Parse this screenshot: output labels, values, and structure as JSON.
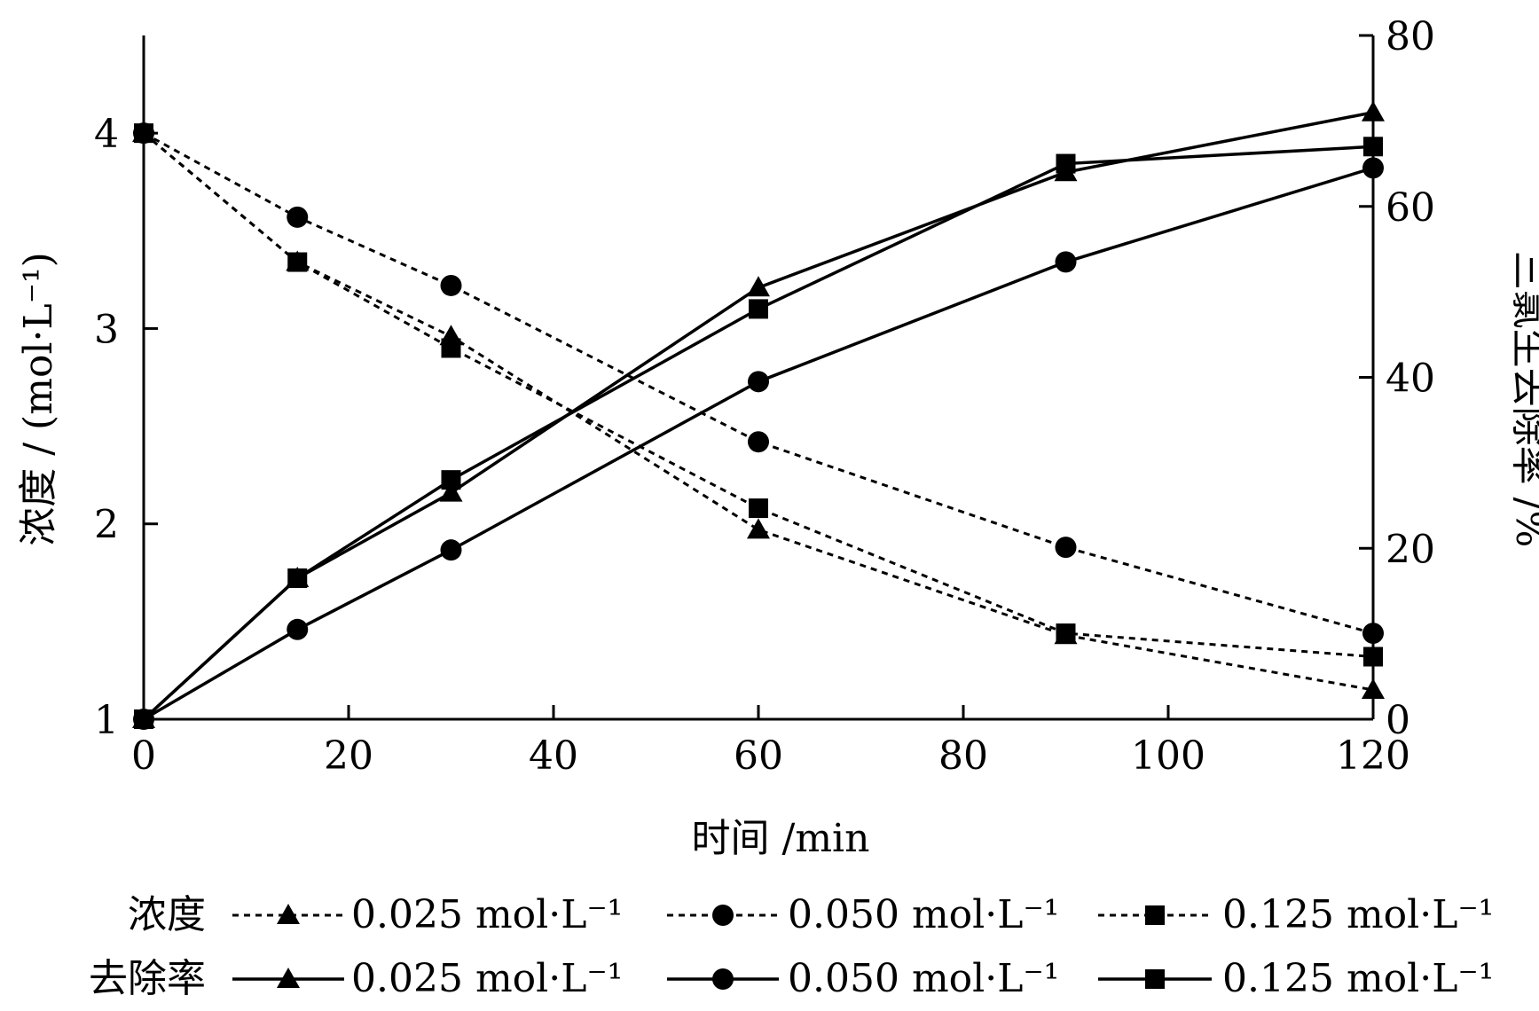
{
  "chart_data": {
    "type": "line",
    "x_label": "时间 /min",
    "y_left_label": "浓度 / (mol·L⁻¹)",
    "y_right_label": "三氯生去除率 /%",
    "x_ticks": [
      "0",
      "20",
      "40",
      "60",
      "80",
      "100",
      "120"
    ],
    "y_left_ticks": [
      "1",
      "2",
      "3",
      "4"
    ],
    "y_right_ticks": [
      "0",
      "20",
      "40",
      "60",
      "80"
    ],
    "xlim": [
      0,
      120
    ],
    "ylim_left": [
      1,
      4.5
    ],
    "ylim_right": [
      0,
      80
    ],
    "x": [
      0,
      15,
      30,
      60,
      90,
      120
    ],
    "series": [
      {
        "name": "浓度 0.025 mol·L⁻¹",
        "axis": "left",
        "style": "dashed",
        "marker": "triangle",
        "values": [
          4.0,
          3.34,
          2.96,
          1.97,
          1.43,
          1.15
        ]
      },
      {
        "name": "浓度 0.050 mol·L⁻¹",
        "axis": "left",
        "style": "dashed",
        "marker": "circle",
        "values": [
          4.0,
          3.57,
          3.22,
          2.42,
          1.88,
          1.44
        ]
      },
      {
        "name": "浓度 0.125 mol·L⁻¹",
        "axis": "left",
        "style": "dashed",
        "marker": "square",
        "values": [
          4.0,
          3.34,
          2.9,
          2.08,
          1.44,
          1.32
        ]
      },
      {
        "name": "去除率 0.025 mol·L⁻¹",
        "axis": "right",
        "style": "solid",
        "marker": "triangle",
        "values": [
          0,
          16.5,
          26.5,
          50.5,
          64.0,
          71.0
        ]
      },
      {
        "name": "去除率 0.050 mol·L⁻¹",
        "axis": "right",
        "style": "solid",
        "marker": "circle",
        "values": [
          0,
          10.5,
          19.8,
          39.5,
          53.5,
          64.5
        ]
      },
      {
        "name": "去除率 0.125 mol·L⁻¹",
        "axis": "right",
        "style": "solid",
        "marker": "square",
        "values": [
          0,
          16.5,
          28.0,
          48.0,
          65.0,
          67.0
        ]
      }
    ],
    "legend": {
      "row_labels": [
        "浓度",
        "去除率"
      ],
      "entries": [
        "0.025 mol·L⁻¹",
        "0.050 mol·L⁻¹",
        "0.125 mol·L⁻¹"
      ]
    }
  }
}
